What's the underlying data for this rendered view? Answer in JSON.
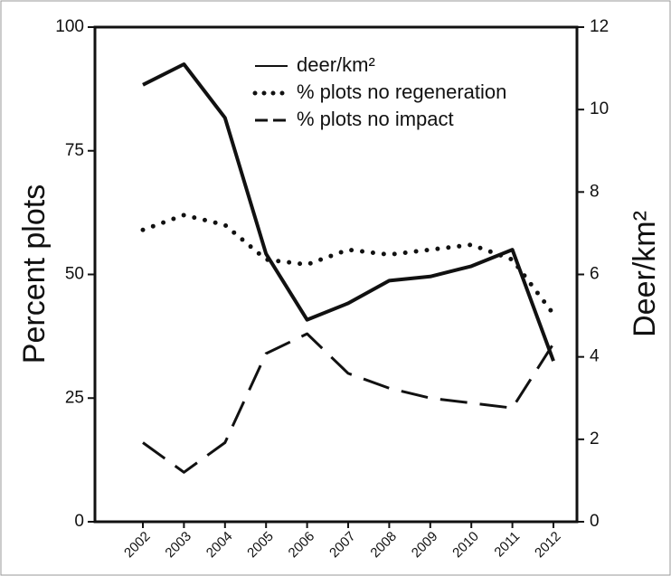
{
  "chart_data": {
    "type": "line",
    "categories": [
      "2002",
      "2003",
      "2004",
      "2005",
      "2006",
      "2007",
      "2008",
      "2009",
      "2010",
      "2011",
      "2012"
    ],
    "ylabel": "Percent plots",
    "y2label": "Deer/km²",
    "ylim": [
      0,
      100
    ],
    "yticks": [
      0,
      25,
      50,
      75,
      100
    ],
    "y2lim": [
      0,
      12
    ],
    "y2ticks": [
      0,
      2,
      4,
      6,
      8,
      10,
      12
    ],
    "series": [
      {
        "name": "deer/km²",
        "color": "#111111",
        "style": "solid",
        "axis": "y2",
        "values": [
          10.6,
          11.1,
          9.8,
          6.5,
          4.9,
          5.3,
          5.85,
          5.95,
          6.2,
          6.6,
          3.9
        ]
      },
      {
        "name": "% plots no regeneration",
        "color": "#111111",
        "style": "dotted",
        "values": [
          59,
          62,
          60,
          53,
          52,
          55,
          54,
          55,
          56,
          53,
          42
        ]
      },
      {
        "name": "% plots no impact",
        "color": "#111111",
        "style": "dashed",
        "values": [
          16,
          10,
          16,
          34,
          38,
          30,
          27,
          25,
          24,
          23,
          36
        ]
      }
    ]
  }
}
